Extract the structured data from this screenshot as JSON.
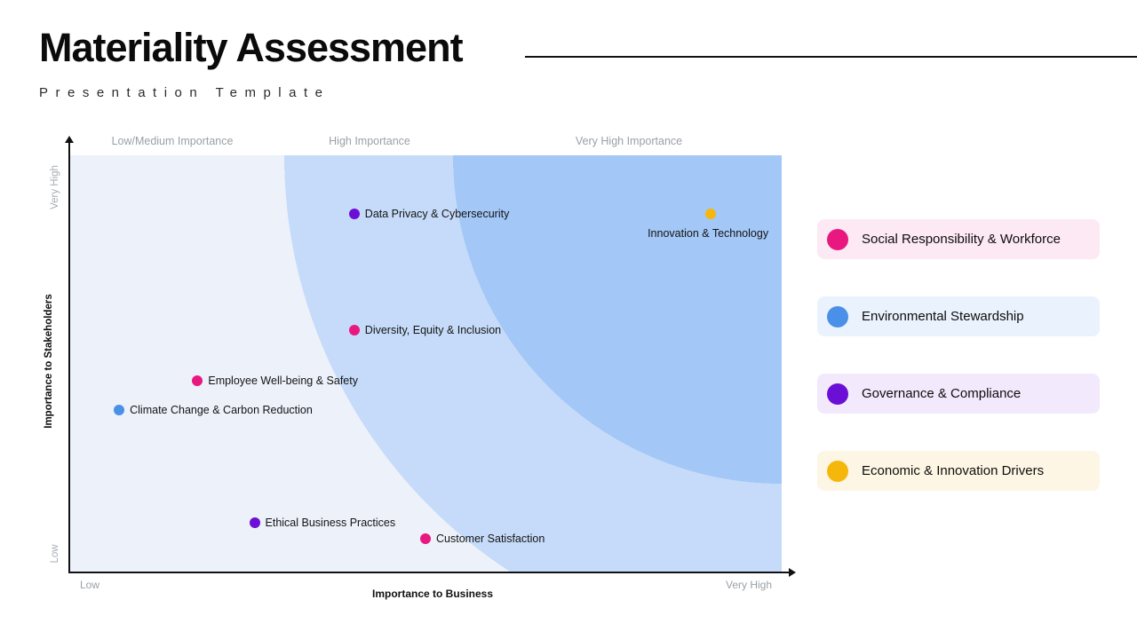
{
  "header": {
    "title": "Materiality Assessment",
    "subtitle": "Presentation Template"
  },
  "chart_data": {
    "type": "scatter",
    "title": "Materiality Assessment",
    "xlabel": "Importance to Business",
    "ylabel": "Importance to Stakeholders",
    "x_axis_ticks": [
      "Low",
      "Very High"
    ],
    "y_axis_ticks": [
      "Low",
      "Very High"
    ],
    "zone_labels": [
      "Low/Medium Importance",
      "High Importance",
      "Very High Importance"
    ],
    "xlim": [
      0,
      1
    ],
    "ylim": [
      0,
      1
    ],
    "grid": false,
    "legend_position": "right",
    "points": [
      {
        "label": "Data Privacy & Cybersecurity",
        "category": "Governance & Compliance",
        "color": "#6b0fd6",
        "x": 0.4,
        "y": 0.86,
        "label_pos": "right"
      },
      {
        "label": "Innovation & Technology",
        "category": "Economic & Innovation Drivers",
        "color": "#f6b70d",
        "x": 0.9,
        "y": 0.86,
        "label_pos": "below"
      },
      {
        "label": "Diversity, Equity & Inclusion",
        "category": "Social Responsibility & Workforce",
        "color": "#e91880",
        "x": 0.4,
        "y": 0.58,
        "label_pos": "right"
      },
      {
        "label": "Employee Well-being & Safety",
        "category": "Social Responsibility & Workforce",
        "color": "#e91880",
        "x": 0.18,
        "y": 0.46,
        "label_pos": "right"
      },
      {
        "label": "Climate Change & Carbon Reduction",
        "category": "Environmental Stewardship",
        "color": "#4a90e8",
        "x": 0.07,
        "y": 0.39,
        "label_pos": "right"
      },
      {
        "label": "Ethical Business Practices",
        "category": "Governance & Compliance",
        "color": "#6b0fd6",
        "x": 0.26,
        "y": 0.12,
        "label_pos": "right"
      },
      {
        "label": "Customer Satisfaction",
        "category": "Social Responsibility & Workforce",
        "color": "#e91880",
        "x": 0.5,
        "y": 0.08,
        "label_pos": "right"
      }
    ]
  },
  "legend": {
    "items": [
      {
        "label": "Social Responsibility & Workforce",
        "color": "#e91880",
        "bg": "#fde9f3"
      },
      {
        "label": "Environmental Stewardship",
        "color": "#4a90e8",
        "bg": "#eaf3fd"
      },
      {
        "label": "Governance & Compliance",
        "color": "#6b0fd6",
        "bg": "#f2e9fd"
      },
      {
        "label": "Economic & Innovation Drivers",
        "color": "#f6b70d",
        "bg": "#fdf6e4"
      }
    ]
  },
  "colors": {
    "band_inner": "#a3c7f6",
    "band_middle": "#c6dbf9",
    "band_outer": "#ecf1fa",
    "axis": "#111111"
  }
}
